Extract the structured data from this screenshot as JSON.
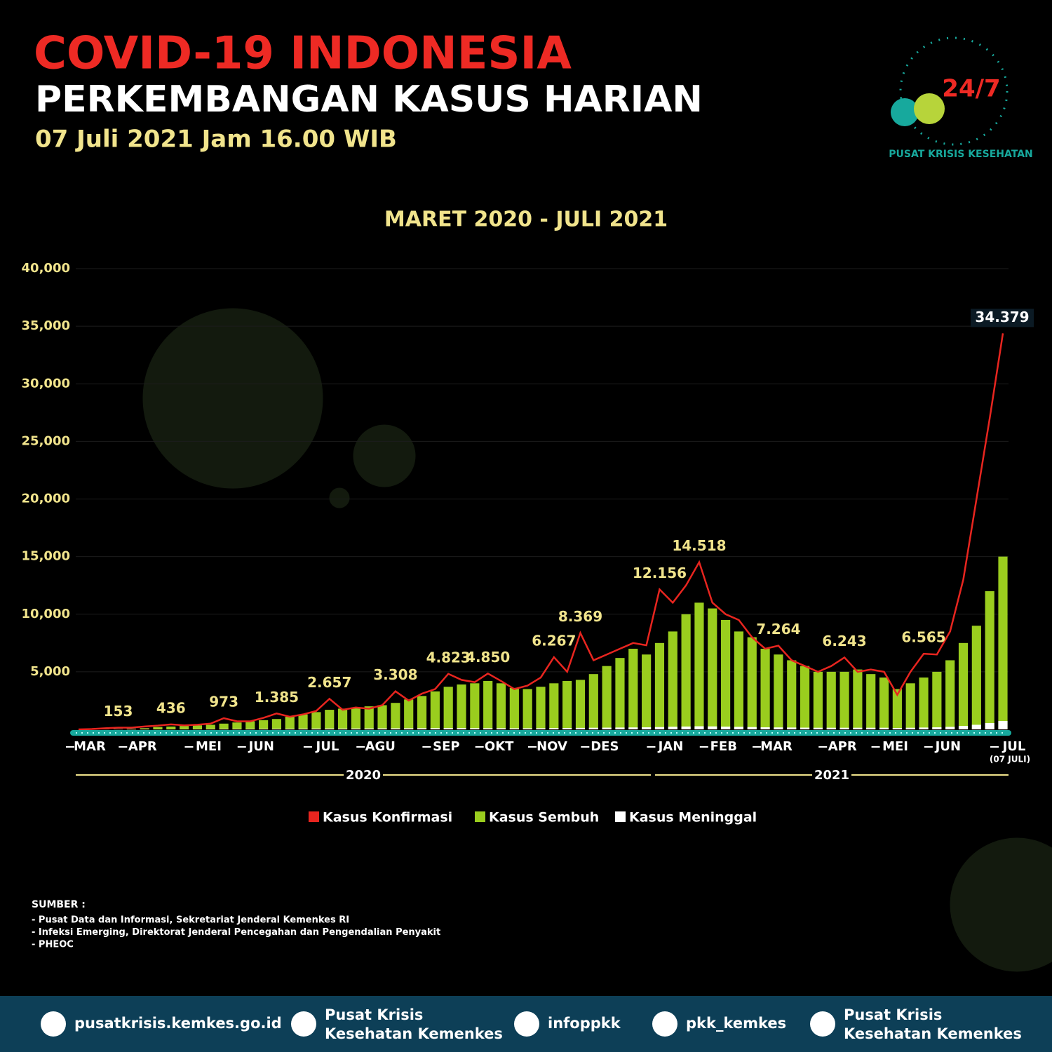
{
  "header": {
    "date": "07 Juli 2021 Jam 16.00 WIB",
    "logo_ring": "PUSAT KRISIS KESEHATAN",
    "logo_center": "24/7"
  },
  "chart_data": {
    "type": "bar-line",
    "title": "COVID-19 INDONESIA",
    "subtitle": "PERKEMBANGAN KASUS HARIAN",
    "period": "MARET 2020 - JULI 2021",
    "categories": [
      "MAR",
      null,
      null,
      null,
      "APR",
      null,
      null,
      null,
      null,
      "MEI",
      null,
      null,
      null,
      "JUN",
      null,
      null,
      null,
      null,
      "JUL",
      null,
      null,
      null,
      "AGU",
      null,
      null,
      null,
      null,
      "SEP",
      null,
      null,
      null,
      "OKT",
      null,
      null,
      null,
      "NOV",
      null,
      null,
      null,
      "DES",
      null,
      null,
      null,
      null,
      "JAN",
      null,
      null,
      null,
      "FEB",
      null,
      null,
      null,
      "MAR",
      null,
      null,
      null,
      null,
      "APR",
      null,
      null,
      null,
      "MEI",
      null,
      null,
      null,
      "JUN",
      null,
      null,
      null,
      null,
      "JUL"
    ],
    "x_note": "(07 JULI)",
    "year_labels": [
      "2020",
      "2021"
    ],
    "ylim": [
      0,
      40000
    ],
    "yticks": [
      {
        "value": 5000,
        "label": "5,000"
      },
      {
        "value": 10000,
        "label": "10,000"
      },
      {
        "value": 15000,
        "label": "15,000"
      },
      {
        "value": 20000,
        "label": "20,000"
      },
      {
        "value": 25000,
        "label": "25,000"
      },
      {
        "value": 30000,
        "label": "30,000"
      },
      {
        "value": 35000,
        "label": "35,000"
      },
      {
        "value": 40000,
        "label": "40,000"
      }
    ],
    "grid": true,
    "series": [
      {
        "name": "Kasus Konfirmasi",
        "color": "#e8251f",
        "kind": "line",
        "values": [
          2,
          30,
          100,
          153,
          150,
          250,
          330,
          436,
          350,
          400,
          500,
          973,
          700,
          700,
          1000,
          1385,
          1100,
          1300,
          1600,
          2657,
          1700,
          1900,
          1800,
          2100,
          3308,
          2500,
          3100,
          3500,
          4823,
          4300,
          4100,
          4850,
          4200,
          3500,
          3800,
          4500,
          6267,
          5000,
          8369,
          6000,
          6500,
          7000,
          7500,
          7300,
          12156,
          11000,
          12500,
          14518,
          11000,
          10000,
          9500,
          8000,
          7000,
          7264,
          6000,
          5500,
          5000,
          5500,
          6243,
          5000,
          5200,
          5000,
          3000,
          5000,
          6565,
          6500,
          8500,
          13000,
          20000,
          27000,
          34379
        ],
        "value_labels": [
          null,
          null,
          null,
          "153",
          null,
          null,
          null,
          "436",
          null,
          null,
          null,
          "973",
          null,
          null,
          null,
          "1.385",
          null,
          null,
          null,
          "2.657",
          null,
          null,
          null,
          null,
          "3.308",
          null,
          null,
          null,
          "4.823",
          null,
          null,
          "4.850",
          null,
          null,
          null,
          null,
          "6.267",
          null,
          "8.369",
          null,
          null,
          null,
          null,
          null,
          "12.156",
          null,
          null,
          "14.518",
          null,
          null,
          null,
          null,
          null,
          "7.264",
          null,
          null,
          null,
          null,
          "6.243",
          null,
          null,
          null,
          null,
          null,
          "6.565",
          null,
          null,
          null,
          null,
          null,
          "34.379"
        ]
      },
      {
        "name": "Kasus Sembuh",
        "color": "#9acd1e",
        "kind": "bar",
        "values": [
          0,
          2,
          10,
          30,
          60,
          100,
          200,
          250,
          300,
          350,
          400,
          500,
          600,
          700,
          800,
          900,
          1100,
          1300,
          1500,
          1700,
          1800,
          1900,
          2000,
          2100,
          2300,
          2600,
          2900,
          3300,
          3700,
          3900,
          4000,
          4200,
          4000,
          3600,
          3500,
          3700,
          4000,
          4200,
          4300,
          4800,
          5500,
          6200,
          7000,
          6500,
          7500,
          8500,
          10000,
          11000,
          10500,
          9500,
          8500,
          8000,
          7000,
          6500,
          6000,
          5500,
          5000,
          5000,
          5000,
          5200,
          4800,
          4500,
          3500,
          4000,
          4500,
          5000,
          6000,
          7500,
          9000,
          12000,
          15000
        ]
      },
      {
        "name": "Kasus Meninggal",
        "color": "#ffffff",
        "kind": "bar",
        "values": [
          0,
          2,
          10,
          20,
          30,
          25,
          20,
          18,
          20,
          25,
          30,
          40,
          40,
          45,
          50,
          55,
          60,
          65,
          70,
          75,
          70,
          75,
          80,
          85,
          90,
          95,
          100,
          105,
          110,
          110,
          105,
          100,
          100,
          95,
          95,
          100,
          110,
          120,
          130,
          140,
          150,
          160,
          170,
          180,
          200,
          230,
          250,
          270,
          260,
          240,
          220,
          200,
          180,
          170,
          160,
          150,
          140,
          140,
          140,
          140,
          140,
          140,
          120,
          140,
          160,
          180,
          220,
          300,
          400,
          550,
          728
        ]
      }
    ],
    "legend": "bottom"
  },
  "source": {
    "title": "SUMBER :",
    "items": [
      "- Pusat Data dan Informasi,  Sekretariat Jenderal Kemenkes RI",
      "- Infeksi Emerging, Direktorat Jenderal Pencegahan dan Pengendalian Penyakit",
      "- PHEOC"
    ]
  },
  "footer": {
    "items": [
      [
        "pusatkrisis.kemkes.go.id"
      ],
      [
        "Pusat Krisis",
        "Kesehatan Kemenkes"
      ],
      [
        "infoppkk"
      ],
      [
        "pkk_kemkes"
      ],
      [
        "Pusat Krisis",
        "Kesehatan Kemenkes"
      ]
    ]
  }
}
